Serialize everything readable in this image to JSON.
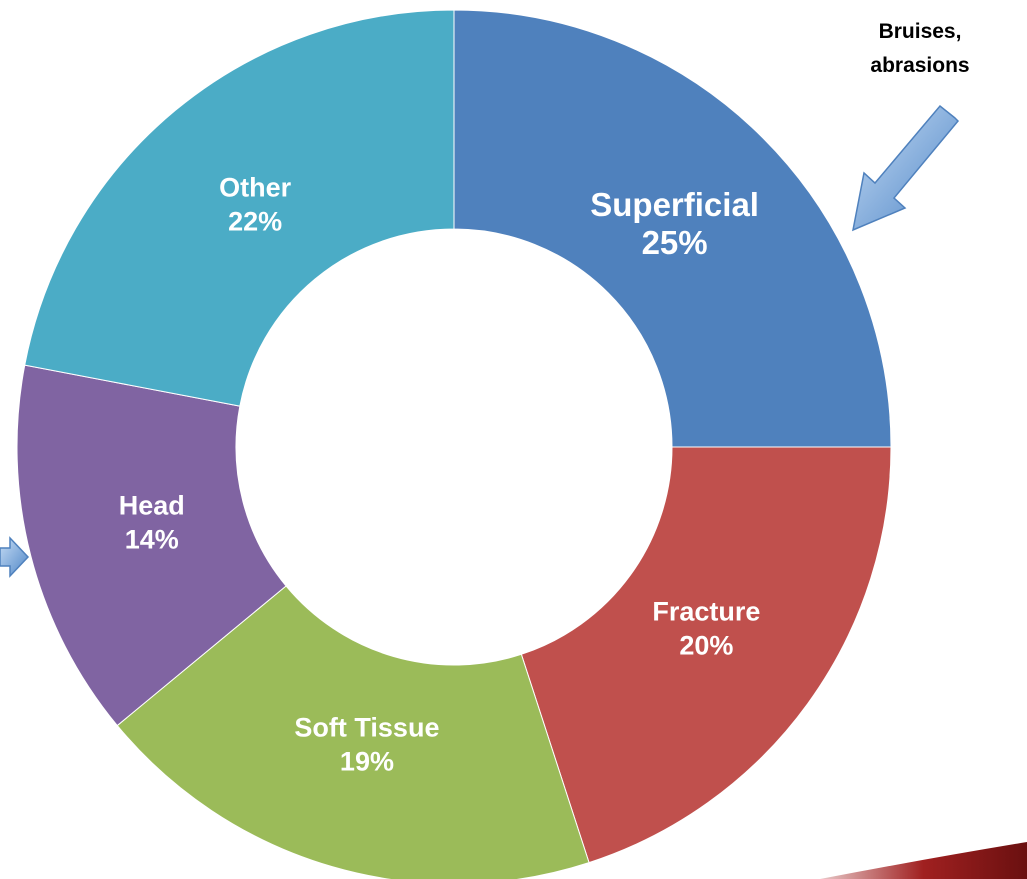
{
  "chart_data": {
    "type": "donut",
    "categories": [
      "Superficial",
      "Fracture",
      "Soft Tissue",
      "Head",
      "Other"
    ],
    "values": [
      25,
      20,
      19,
      14,
      22
    ],
    "value_labels": [
      "25%",
      "20%",
      "19%",
      "14%",
      "22%"
    ],
    "colors": [
      "#4f81bd",
      "#c0504d",
      "#9bbb59",
      "#8064a2",
      "#4bacc6"
    ],
    "annotation": [
      "Bruises,",
      "abrasions"
    ]
  }
}
